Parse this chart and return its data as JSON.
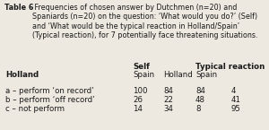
{
  "title_bold": "Table 6",
  "title_rest": " Frequencies of chosen answer by Dutchmen (n=20) and Spaniards (n=20) on the question: ‘What would you do?’ (Self) and ‘What would be the typical reaction in Holland/Spain’ (Typical reaction), for 7 potentially face threatening situations.",
  "bg_color": "#ede8e0",
  "text_color": "#1a1a1a",
  "font_size_title": 5.8,
  "font_size_table": 6.2,
  "col_x_pts": [
    6,
    148,
    182,
    218,
    258
  ],
  "header1_labels": [
    "",
    "Self",
    "",
    "Typical reaction",
    ""
  ],
  "header2_labels": [
    "Holland",
    "Spain",
    "Holland",
    "Spain",
    ""
  ],
  "header2_bold": [
    true,
    false,
    false,
    false,
    false
  ],
  "rows": [
    [
      "a – perform ‘on record’",
      "100",
      "84",
      "84",
      "4"
    ],
    [
      "b – perform ‘off record’",
      "26",
      "22",
      "48",
      "41"
    ],
    [
      "c – not perform",
      "14",
      "34",
      "8",
      "95"
    ]
  ]
}
